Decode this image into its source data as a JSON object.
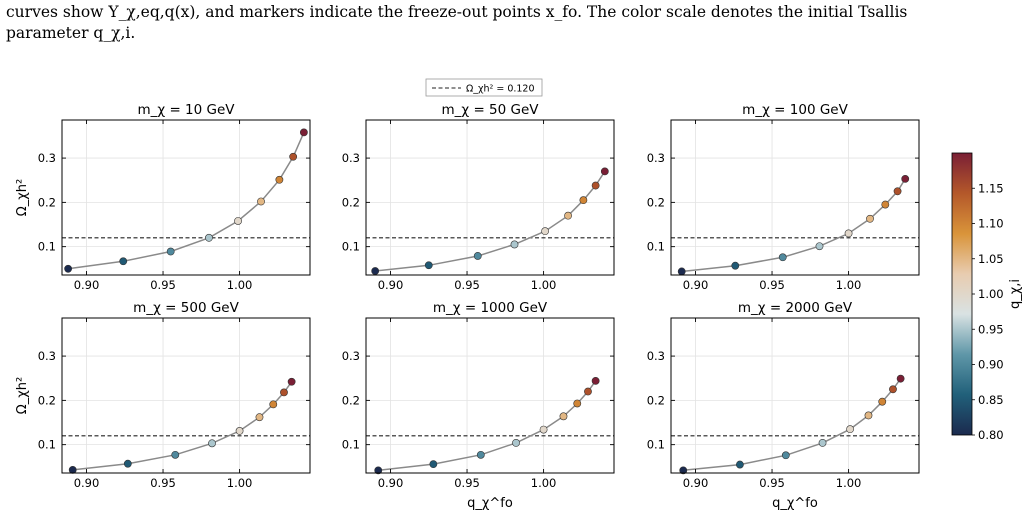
{
  "caption": {
    "line1": "curves show Y_χ,eq,q(x), and markers indicate the freeze-out points x_fo. The color scale denotes the initial Tsallis",
    "line2": "parameter q_χ,i."
  },
  "legend": {
    "label": "Ω_χh² = 0.120"
  },
  "colorbar": {
    "label": "q_χ,i",
    "min": 0.8,
    "max": 1.2,
    "ticks": [
      "0.80",
      "0.85",
      "0.90",
      "0.95",
      "1.00",
      "1.05",
      "1.10",
      "1.15"
    ],
    "colors": [
      "#1b2a4e",
      "#21607a",
      "#5f97a8",
      "#d9e2e3",
      "#e8ccb0",
      "#d9943a",
      "#b4582a",
      "#7a1f35"
    ]
  },
  "chart_data": [
    {
      "type": "line",
      "title": "m_χ = 10 GeV",
      "xlabel": "",
      "ylabel": "Ω_χh²",
      "xticks": [
        "0.90",
        "0.95",
        "1.00"
      ],
      "yticks": [
        "0.1",
        "0.2",
        "0.3"
      ],
      "xlim": [
        0.884,
        1.046
      ],
      "ylim": [
        0.036,
        0.386
      ],
      "reference_line": 0.12,
      "x": [
        0.888,
        0.924,
        0.955,
        0.98,
        0.999,
        1.014,
        1.026,
        1.035,
        1.042
      ],
      "y": [
        0.05,
        0.067,
        0.089,
        0.12,
        0.158,
        0.202,
        0.251,
        0.303,
        0.358
      ],
      "q_init": [
        0.8,
        0.85,
        0.9,
        0.95,
        1.0,
        1.05,
        1.1,
        1.15,
        1.2
      ]
    },
    {
      "type": "line",
      "title": "m_χ = 50 GeV",
      "xlabel": "",
      "ylabel": "",
      "xticks": [
        "0.90",
        "0.95",
        "1.00"
      ],
      "yticks": [
        "0.1",
        "0.2",
        "0.3"
      ],
      "xlim": [
        0.884,
        1.046
      ],
      "ylim": [
        0.036,
        0.386
      ],
      "reference_line": 0.12,
      "x": [
        0.89,
        0.925,
        0.957,
        0.981,
        1.001,
        1.016,
        1.026,
        1.034,
        1.04
      ],
      "y": [
        0.045,
        0.058,
        0.079,
        0.105,
        0.135,
        0.17,
        0.205,
        0.238,
        0.27
      ],
      "q_init": [
        0.8,
        0.85,
        0.9,
        0.95,
        1.0,
        1.05,
        1.1,
        1.15,
        1.2
      ]
    },
    {
      "type": "line",
      "title": "m_χ = 100 GeV",
      "xlabel": "",
      "ylabel": "",
      "xticks": [
        "0.90",
        "0.95",
        "1.00"
      ],
      "yticks": [
        "0.1",
        "0.2",
        "0.3"
      ],
      "xlim": [
        0.884,
        1.046
      ],
      "ylim": [
        0.036,
        0.386
      ],
      "reference_line": 0.12,
      "x": [
        0.891,
        0.926,
        0.957,
        0.981,
        1.0,
        1.014,
        1.024,
        1.032,
        1.037
      ],
      "y": [
        0.044,
        0.057,
        0.076,
        0.101,
        0.13,
        0.163,
        0.195,
        0.225,
        0.253
      ],
      "q_init": [
        0.8,
        0.85,
        0.9,
        0.95,
        1.0,
        1.05,
        1.1,
        1.15,
        1.2
      ]
    },
    {
      "type": "line",
      "title": "m_χ = 500 GeV",
      "xlabel": "",
      "ylabel": "Ω_χh²",
      "xticks": [
        "0.90",
        "0.95",
        "1.00"
      ],
      "yticks": [
        "0.1",
        "0.2",
        "0.3"
      ],
      "xlim": [
        0.884,
        1.046
      ],
      "ylim": [
        0.036,
        0.386
      ],
      "reference_line": 0.12,
      "x": [
        0.891,
        0.927,
        0.958,
        0.982,
        1.0,
        1.013,
        1.022,
        1.029,
        1.034
      ],
      "y": [
        0.043,
        0.057,
        0.077,
        0.103,
        0.131,
        0.162,
        0.191,
        0.218,
        0.242
      ],
      "q_init": [
        0.8,
        0.85,
        0.9,
        0.95,
        1.0,
        1.05,
        1.1,
        1.15,
        1.2
      ]
    },
    {
      "type": "line",
      "title": "m_χ = 1000 GeV",
      "xlabel": "q_χ^fo",
      "ylabel": "",
      "xticks": [
        "0.90",
        "0.95",
        "1.00"
      ],
      "yticks": [
        "0.1",
        "0.2",
        "0.3"
      ],
      "xlim": [
        0.884,
        1.046
      ],
      "ylim": [
        0.036,
        0.386
      ],
      "reference_line": 0.12,
      "x": [
        0.892,
        0.928,
        0.959,
        0.982,
        1.0,
        1.013,
        1.022,
        1.029,
        1.034
      ],
      "y": [
        0.042,
        0.056,
        0.077,
        0.104,
        0.134,
        0.164,
        0.193,
        0.22,
        0.244
      ],
      "q_init": [
        0.8,
        0.85,
        0.9,
        0.95,
        1.0,
        1.05,
        1.1,
        1.15,
        1.2
      ]
    },
    {
      "type": "line",
      "title": "m_χ = 2000 GeV",
      "xlabel": "q_χ^fo",
      "ylabel": "",
      "xticks": [
        "0.90",
        "0.95",
        "1.00"
      ],
      "yticks": [
        "0.1",
        "0.2",
        "0.3"
      ],
      "xlim": [
        0.884,
        1.046
      ],
      "ylim": [
        0.036,
        0.386
      ],
      "reference_line": 0.12,
      "x": [
        0.892,
        0.929,
        0.959,
        0.983,
        1.001,
        1.013,
        1.022,
        1.029,
        1.034
      ],
      "y": [
        0.042,
        0.055,
        0.076,
        0.104,
        0.135,
        0.166,
        0.197,
        0.225,
        0.249
      ],
      "q_init": [
        0.8,
        0.85,
        0.9,
        0.95,
        1.0,
        1.05,
        1.1,
        1.15,
        1.2
      ]
    }
  ]
}
